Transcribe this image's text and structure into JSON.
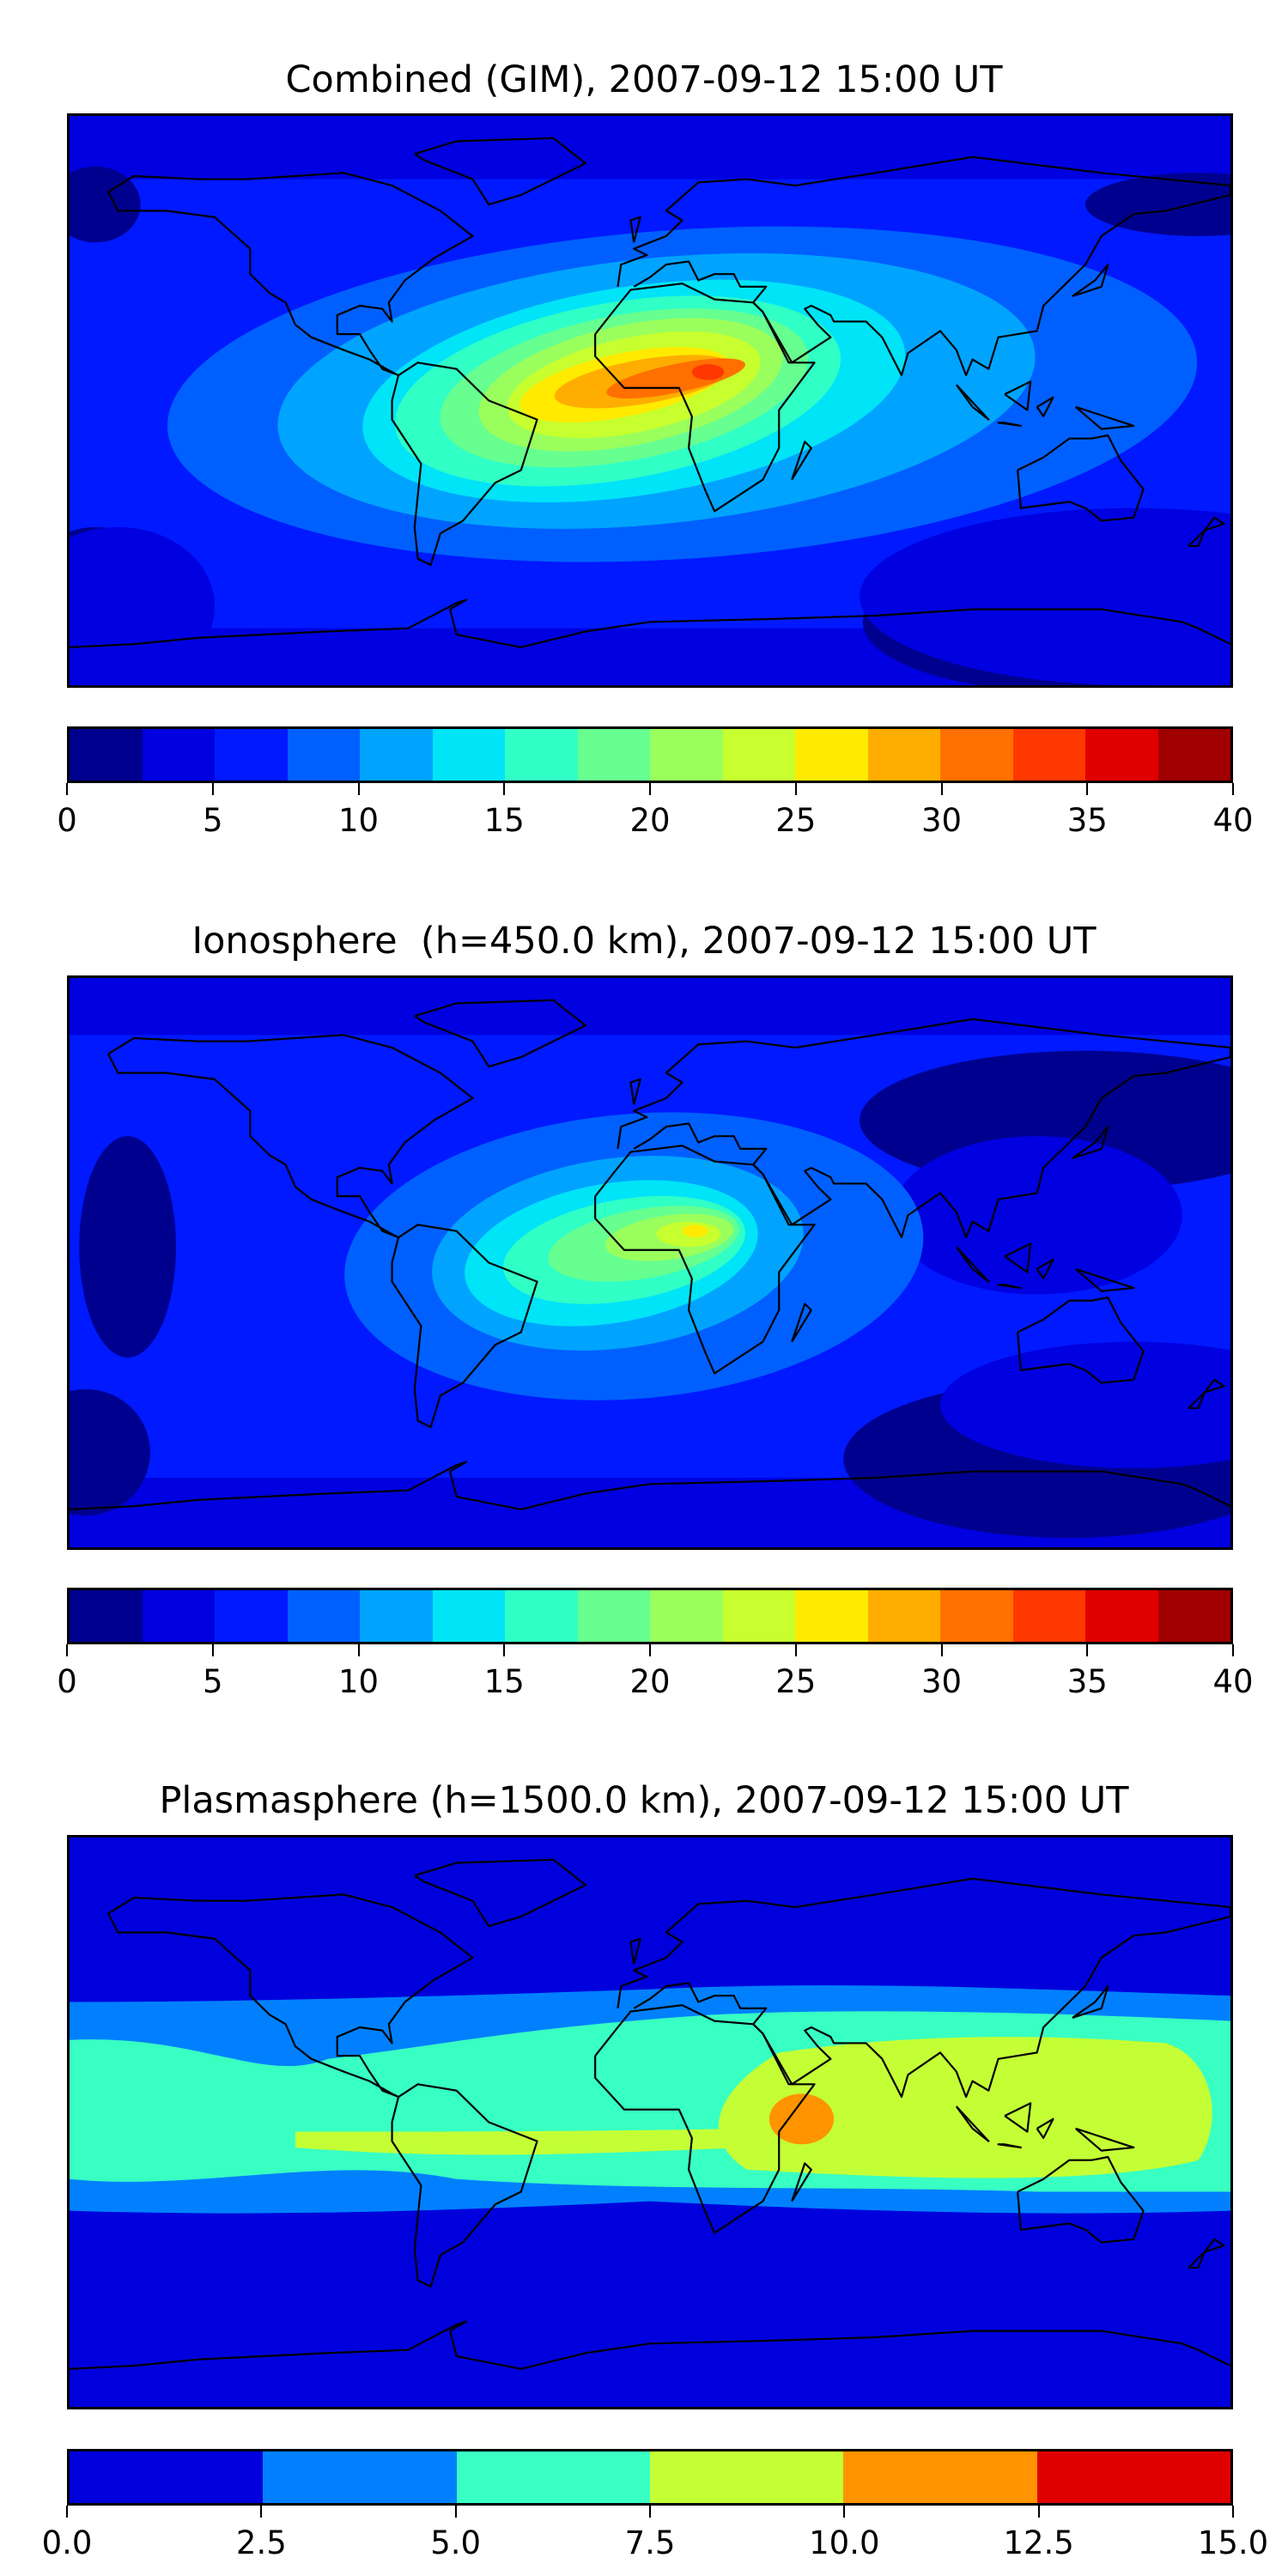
{
  "chart_data": [
    {
      "type": "heatmap",
      "title": "Combined (GIM), 2007-09-12 15:00 UT",
      "projection": "equirectangular, lon -180..180, lat -90..90",
      "colorbar": {
        "range": [
          0,
          40
        ],
        "levels": [
          0,
          2.5,
          5,
          7.5,
          10,
          12.5,
          15,
          17.5,
          20,
          22.5,
          25,
          27.5,
          30,
          32.5,
          35,
          37.5,
          40
        ],
        "colors": [
          "#00008f",
          "#0000e0",
          "#0019ff",
          "#0060ff",
          "#00a4ff",
          "#00e4f8",
          "#30ffc6",
          "#66ff90",
          "#9aff5c",
          "#c7ff2f",
          "#ffea00",
          "#ffad00",
          "#ff7000",
          "#ff3700",
          "#e00000",
          "#a00000"
        ],
        "tick_labels": [
          "0",
          "5",
          "10",
          "15",
          "20",
          "25",
          "30",
          "35",
          "40"
        ]
      },
      "features": {
        "peak_lon": 18,
        "peak_lat": 9,
        "peak_value_range": [
          32.5,
          35
        ],
        "background_range": [
          5,
          7.5
        ]
      }
    },
    {
      "type": "heatmap",
      "title": "Ionosphere  (h=450.0 km), 2007-09-12 15:00 UT",
      "projection": "equirectangular, lon -180..180, lat -90..90",
      "colorbar": {
        "range": [
          0,
          40
        ],
        "levels": [
          0,
          2.5,
          5,
          7.5,
          10,
          12.5,
          15,
          17.5,
          20,
          22.5,
          25,
          27.5,
          30,
          32.5,
          35,
          37.5,
          40
        ],
        "colors": [
          "#00008f",
          "#0000e0",
          "#0019ff",
          "#0060ff",
          "#00a4ff",
          "#00e4f8",
          "#30ffc6",
          "#66ff90",
          "#9aff5c",
          "#c7ff2f",
          "#ffea00",
          "#ffad00",
          "#ff7000",
          "#ff3700",
          "#e00000",
          "#a00000"
        ],
        "tick_labels": [
          "0",
          "5",
          "10",
          "15",
          "20",
          "25",
          "30",
          "35",
          "40"
        ]
      },
      "features": {
        "peak_lon": 14,
        "peak_lat": 10,
        "peak_value_range": [
          25,
          27.5
        ],
        "background_range": [
          5,
          7.5
        ]
      }
    },
    {
      "type": "heatmap",
      "title": "Plasmasphere (h=1500.0 km), 2007-09-12 15:00 UT",
      "projection": "equirectangular, lon -180..180, lat -90..90",
      "colorbar": {
        "range": [
          0,
          15
        ],
        "levels": [
          0,
          2.5,
          5,
          7.5,
          10,
          12.5,
          15
        ],
        "colors": [
          "#0000dc",
          "#0080ff",
          "#38ffc2",
          "#c4ff36",
          "#ff9400",
          "#e00000"
        ],
        "tick_labels": [
          "0.0",
          "2.5",
          "5.0",
          "7.5",
          "10.0",
          "12.5",
          "15.0"
        ]
      },
      "features": {
        "peak_lon": 45,
        "peak_lat": 0,
        "peak_value_range": [
          10,
          12.5
        ],
        "background_range": [
          0,
          2.5
        ]
      }
    }
  ]
}
